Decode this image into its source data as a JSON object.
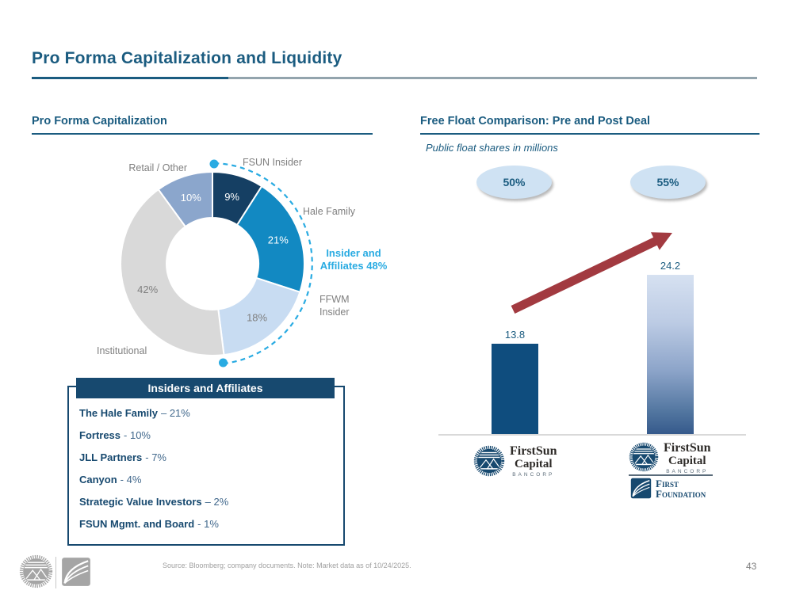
{
  "slide": {
    "title": "Pro Forma Capitalization and Liquidity",
    "page_number": "43",
    "footnote": "Source: Bloomberg; company documents. Note: Market data as of 10/24/2025."
  },
  "colors": {
    "navy": "#1b5c80",
    "dark_navy": "#17496f",
    "accent_cyan": "#29abe2",
    "arrow_red": "#a23a40",
    "badge_blue": "#cfe2f3",
    "label_gray": "#7f7f7f",
    "bar_navy": "#0f4d7e"
  },
  "chart_data": [
    {
      "type": "pie",
      "donut": true,
      "title": "Pro Forma Capitalization",
      "segments": [
        {
          "label": "FSUN Insider",
          "value": 9,
          "color": "#153f63",
          "text_color": "#ffffff"
        },
        {
          "label": "Hale Family",
          "value": 21,
          "color": "#1289c2",
          "text_color": "#ffffff"
        },
        {
          "label": "FFWM Insider",
          "value": 18,
          "color": "#c8dcf2",
          "text_color": "#7f7f7f"
        },
        {
          "label": "Institutional",
          "value": 42,
          "color": "#d9d9d9",
          "text_color": "#7f7f7f"
        },
        {
          "label": "Retail / Other",
          "value": 10,
          "color": "#8ba6cc",
          "text_color": "#ffffff"
        }
      ],
      "callout": {
        "line1": "Insider and",
        "line2": "Affiliates 48%",
        "total": "48%"
      },
      "annotation_arc": "dashed cyan arc spanning insider segments (0% to 48%)"
    },
    {
      "type": "bar",
      "title": "Free Float Comparison: Pre and Post Deal",
      "subtitle": "Public float shares in millions",
      "categories": [
        "FirstSun Capital Bancorp (pre deal)",
        "FirstSun Capital Bancorp + First Foundation (post deal)"
      ],
      "values": [
        13.8,
        24.2
      ],
      "labels": [
        "13.8",
        "24.2"
      ],
      "badges": [
        "50%",
        "55%"
      ],
      "ylim": [
        0,
        26
      ],
      "grid": false,
      "annotation": "red upward arrow between bars"
    }
  ],
  "insiders_box": {
    "title": "Insiders and Affiliates",
    "items": [
      {
        "name": "The Hale Family",
        "value": "– 21%"
      },
      {
        "name": "Fortress",
        "value": "- 10%"
      },
      {
        "name": "JLL Partners",
        "value": "- 7%"
      },
      {
        "name": "Canyon",
        "value": "- 4%"
      },
      {
        "name": "Strategic Value Investors",
        "value": "– 2%"
      },
      {
        "name": "FSUN Mgmt. and Board",
        "value": "- 1%"
      }
    ]
  },
  "logos": {
    "firstsun": {
      "name": "FirstSun",
      "line2": "Capital",
      "line3": "BANCORP"
    },
    "first_foundation": {
      "line1": "First",
      "line2": "Foundation"
    }
  }
}
